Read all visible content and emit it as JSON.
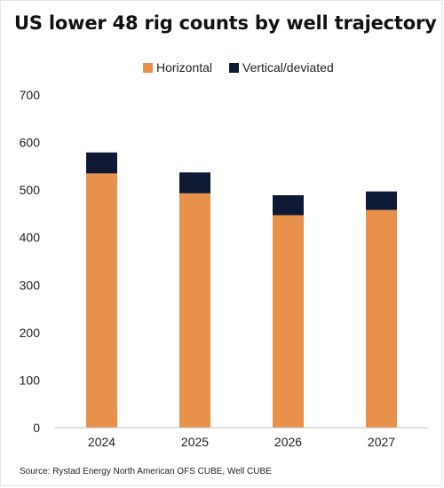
{
  "title": "US lower 48 rig counts by well trajectory",
  "source": "Source:  Rystad Energy North American OFS CUBE, Well CUBE",
  "colors": {
    "horizontal": "#E8914A",
    "vertical": "#0E1A33",
    "axis": "#bfbfbf"
  },
  "chart_data": {
    "type": "bar",
    "stacked": true,
    "categories": [
      "2024",
      "2025",
      "2026",
      "2027"
    ],
    "series": [
      {
        "name": "Horizontal",
        "values": [
          535,
          493,
          447,
          458
        ]
      },
      {
        "name": "Vertical/deviated",
        "values": [
          44,
          44,
          42,
          39
        ]
      }
    ],
    "ylim": [
      0,
      700
    ],
    "yticks": [
      0,
      100,
      200,
      300,
      400,
      500,
      600,
      700
    ],
    "grid": false,
    "legend": "top"
  }
}
